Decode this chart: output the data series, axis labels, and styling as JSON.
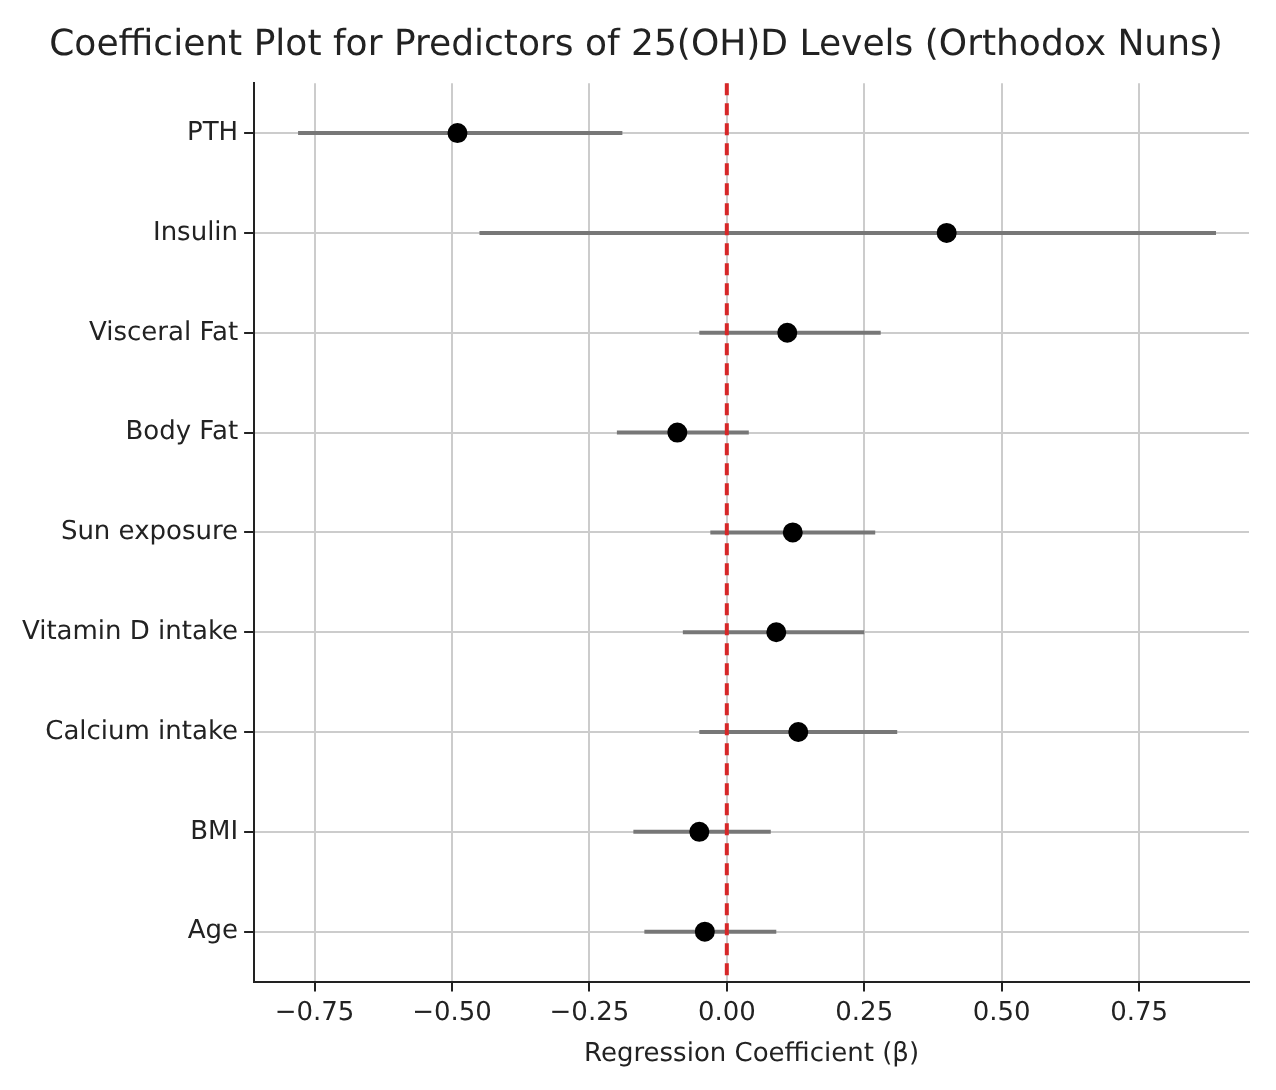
{
  "chart_data": {
    "type": "scatter",
    "orientation": "horizontal",
    "title": "Coefficient Plot for Predictors of 25(OH)D Levels (Orthodox Nuns)",
    "xlabel": "Regression Coefficient (β)",
    "categories": [
      "PTH",
      "Insulin",
      "Visceral Fat",
      "Body Fat",
      "Sun exposure",
      "Vitamin D intake",
      "Calcium intake",
      "BMI",
      "Age"
    ],
    "values": [
      -0.49,
      0.4,
      0.11,
      -0.09,
      0.12,
      0.09,
      0.13,
      -0.05,
      -0.04
    ],
    "errors": [
      [
        -0.78,
        -0.19
      ],
      [
        -0.45,
        0.89
      ],
      [
        -0.05,
        0.28
      ],
      [
        -0.2,
        0.04
      ],
      [
        -0.03,
        0.27
      ],
      [
        -0.08,
        0.25
      ],
      [
        -0.05,
        0.31
      ],
      [
        -0.17,
        0.08
      ],
      [
        -0.15,
        0.09
      ]
    ],
    "color": "#000000",
    "xlim": [
      -0.86,
      0.95
    ],
    "xticks": [
      {
        "value": -0.75,
        "label": "−0.75"
      },
      {
        "value": -0.5,
        "label": "−0.50"
      },
      {
        "value": -0.25,
        "label": "−0.25"
      },
      {
        "value": 0,
        "label": "0.00"
      },
      {
        "value": 0.25,
        "label": "0.25"
      },
      {
        "value": 0.5,
        "label": "0.50"
      },
      {
        "value": 0.75,
        "label": "0.75"
      }
    ],
    "ref_lines": [
      {
        "axis": "x",
        "value": 0,
        "color": "#d62728",
        "line_style": "dashed"
      }
    ],
    "grid": true,
    "marker": "circle",
    "legend": false
  }
}
